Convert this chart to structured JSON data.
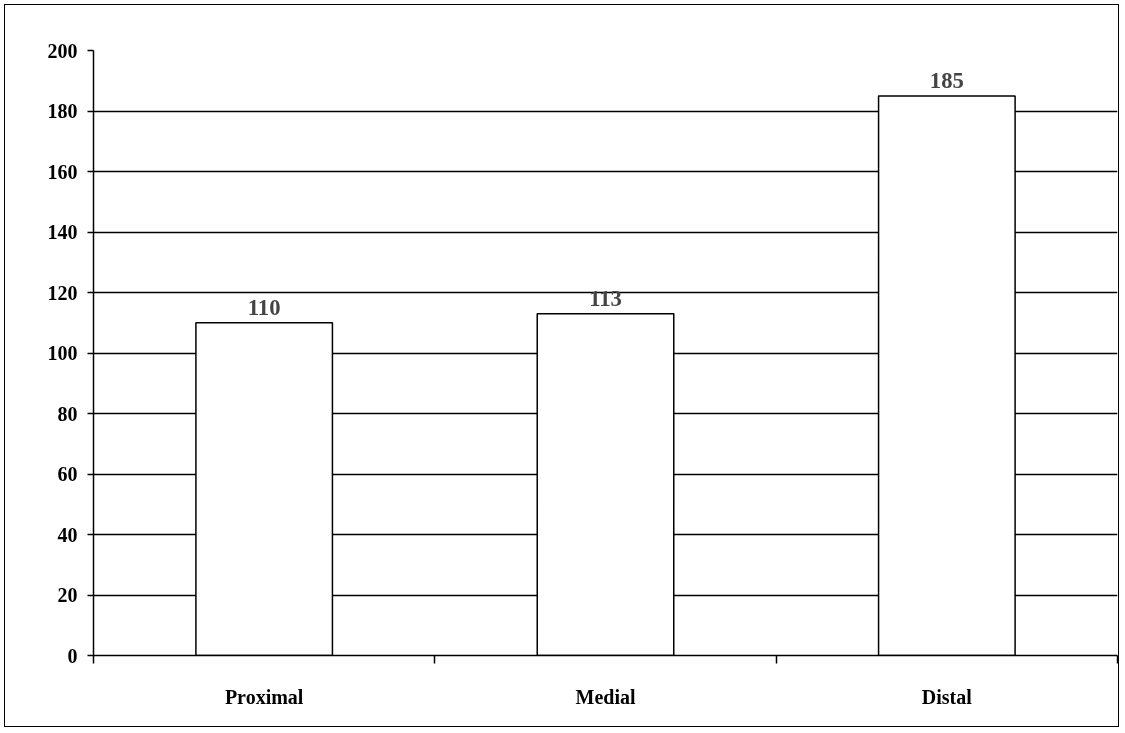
{
  "chart_data": {
    "type": "bar",
    "categories": [
      "Proximal",
      "Medial",
      "Distal"
    ],
    "values": [
      110,
      113,
      185
    ],
    "color": "#ffffff",
    "ylim": [
      0,
      200
    ],
    "yticks": [
      0,
      20,
      40,
      60,
      80,
      100,
      120,
      140,
      160,
      180,
      200
    ],
    "grid": "y",
    "data_labels": true
  }
}
